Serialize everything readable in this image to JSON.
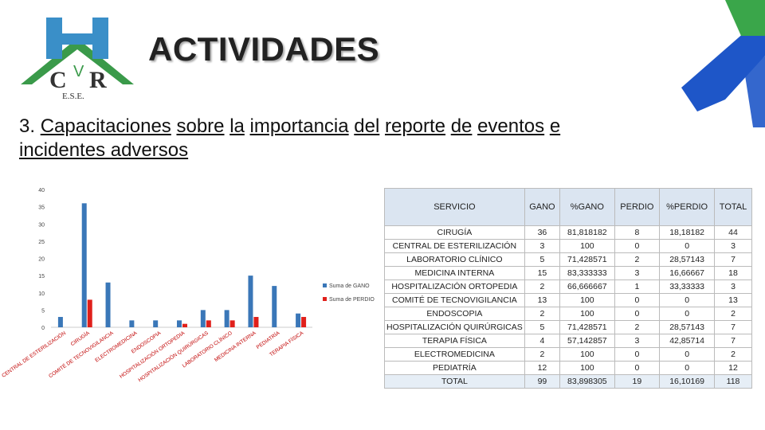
{
  "header": {
    "title": "ACTIVIDADES",
    "logo_text": "E.S.E.",
    "logo_letters": "HCVR"
  },
  "subtitle": {
    "number": "3.",
    "words": [
      "Capacitaciones",
      "sobre",
      "la",
      "importancia",
      "del",
      "reporte",
      "de",
      "eventos",
      "e"
    ],
    "line2": "incidentes adversos"
  },
  "chart_data": {
    "type": "bar",
    "categories": [
      "CENTRAL DE ESTERILIZACIÓN",
      "CIRUGÍA",
      "COMITÉ DE TECNOVIGILANCIA",
      "ELECTROMEDICINA",
      "ENDOSCOPIA",
      "HOSPITALIZACIÓN ORTOPEDIA",
      "HOSPITALIZACIÓN QUIRÚRGICAS",
      "LABORATORIO CLÍNICO",
      "MEDICINA INTERNA",
      "PEDIATRÍA",
      "TERAPIA FÍSICA"
    ],
    "series": [
      {
        "name": "Suma de GANO",
        "values": [
          3,
          36,
          13,
          2,
          2,
          2,
          5,
          5,
          15,
          12,
          4
        ],
        "color": "#3a77b8"
      },
      {
        "name": "Suma de PERDIO",
        "values": [
          0,
          8,
          0,
          0,
          0,
          1,
          2,
          2,
          3,
          0,
          3
        ],
        "color": "#e0201b"
      }
    ],
    "yticks": [
      0,
      5,
      10,
      15,
      20,
      25,
      30,
      35,
      40
    ],
    "ylim": [
      0,
      40
    ],
    "legend": "right"
  },
  "table": {
    "headers": [
      "SERVICIO",
      "GANO",
      "%GANO",
      "PERDIO",
      "%PERDIO",
      "TOTAL"
    ],
    "rows": [
      [
        "CIRUGÍA",
        "36",
        "81,818182",
        "8",
        "18,18182",
        "44"
      ],
      [
        "CENTRAL DE ESTERILIZACIÓN",
        "3",
        "100",
        "0",
        "0",
        "3"
      ],
      [
        "LABORATORIO CLÍNICO",
        "5",
        "71,428571",
        "2",
        "28,57143",
        "7"
      ],
      [
        "MEDICINA INTERNA",
        "15",
        "83,333333",
        "3",
        "16,66667",
        "18"
      ],
      [
        "HOSPITALIZACIÓN ORTOPEDIA",
        "2",
        "66,666667",
        "1",
        "33,33333",
        "3"
      ],
      [
        "COMITÉ DE TECNOVIGILANCIA",
        "13",
        "100",
        "0",
        "0",
        "13"
      ],
      [
        "ENDOSCOPIA",
        "2",
        "100",
        "0",
        "0",
        "2"
      ],
      [
        "HOSPITALIZACIÓN QUIRÚRGICAS",
        "5",
        "71,428571",
        "2",
        "28,57143",
        "7"
      ],
      [
        "TERAPIA FÍSICA",
        "4",
        "57,142857",
        "3",
        "42,85714",
        "7"
      ],
      [
        "ELECTROMEDICINA",
        "2",
        "100",
        "0",
        "0",
        "2"
      ],
      [
        "PEDIATRÍA",
        "12",
        "100",
        "0",
        "0",
        "12"
      ]
    ],
    "total": [
      "TOTAL",
      "99",
      "83,898305",
      "19",
      "16,10169",
      "118"
    ]
  },
  "colors": {
    "accent_blue": "#1e56c8",
    "logo_green": "#3a9a4a",
    "table_header": "#dbe5f1"
  }
}
